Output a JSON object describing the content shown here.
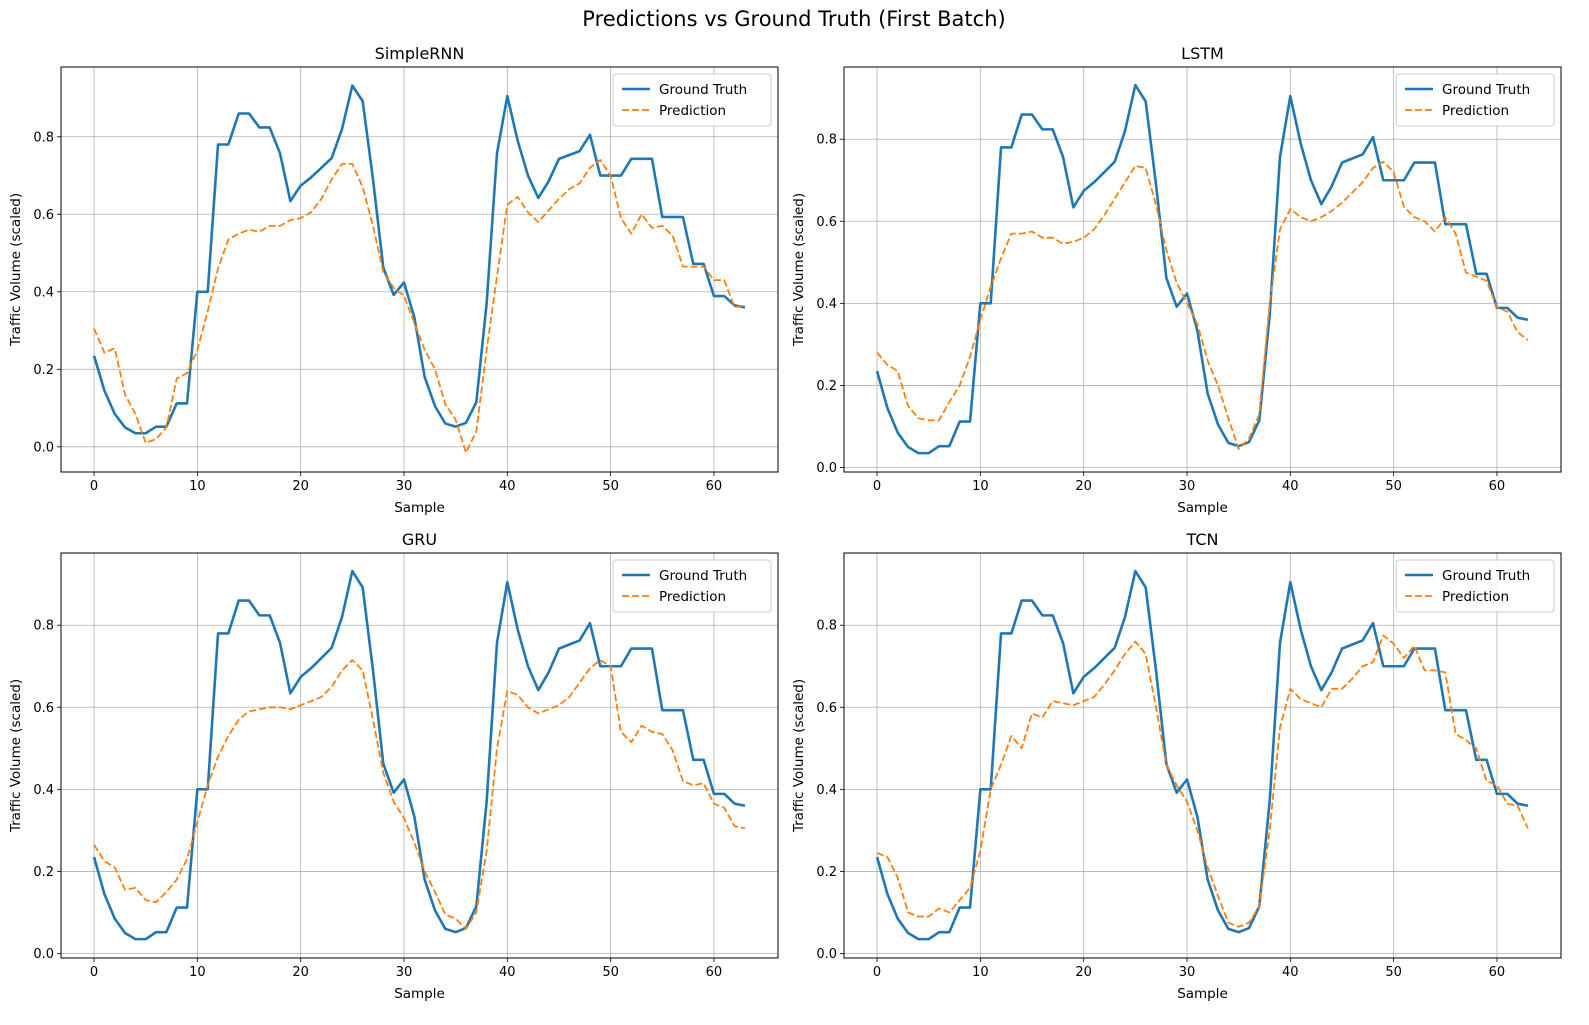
{
  "figure": {
    "suptitle": "Predictions vs Ground Truth (First Batch)"
  },
  "colors": {
    "ground_truth": "#1f77b4",
    "prediction": "#ff7f0e",
    "grid": "#b0b0b0"
  },
  "chart_data": [
    {
      "type": "line",
      "title": "SimpleRNN",
      "xlabel": "Sample",
      "ylabel": "Traffic Volume (scaled)",
      "xlim": [
        -3.2,
        66.2
      ],
      "ylim": [
        -0.065,
        0.98
      ],
      "xticks": [
        0,
        10,
        20,
        30,
        40,
        50,
        60
      ],
      "yticks": [
        0.0,
        0.2,
        0.4,
        0.6,
        0.8
      ],
      "grid": true,
      "legend": "top-right",
      "series": [
        {
          "name": "Ground Truth",
          "style": "solid",
          "values": [
            0.235,
            0.145,
            0.085,
            0.05,
            0.035,
            0.035,
            0.052,
            0.052,
            0.112,
            0.112,
            0.4,
            0.4,
            0.78,
            0.78,
            0.86,
            0.86,
            0.824,
            0.824,
            0.757,
            0.634,
            0.674,
            0.695,
            0.72,
            0.745,
            0.82,
            0.932,
            0.892,
            0.69,
            0.462,
            0.392,
            0.424,
            0.334,
            0.18,
            0.105,
            0.06,
            0.052,
            0.062,
            0.115,
            0.37,
            0.757,
            0.905,
            0.79,
            0.7,
            0.642,
            0.685,
            0.743,
            0.753,
            0.763,
            0.805,
            0.7,
            0.7,
            0.7,
            0.743,
            0.743,
            0.743,
            0.593,
            0.593,
            0.593,
            0.472,
            0.472,
            0.389,
            0.389,
            0.365,
            0.36
          ]
        },
        {
          "name": "Prediction",
          "style": "dashed",
          "values": [
            0.305,
            0.243,
            0.254,
            0.135,
            0.085,
            0.01,
            0.02,
            0.05,
            0.176,
            0.19,
            0.25,
            0.35,
            0.46,
            0.535,
            0.55,
            0.56,
            0.555,
            0.57,
            0.57,
            0.585,
            0.59,
            0.605,
            0.64,
            0.69,
            0.73,
            0.73,
            0.67,
            0.57,
            0.45,
            0.41,
            0.39,
            0.32,
            0.25,
            0.2,
            0.11,
            0.07,
            -0.015,
            0.04,
            0.25,
            0.44,
            0.625,
            0.645,
            0.605,
            0.58,
            0.61,
            0.64,
            0.665,
            0.68,
            0.72,
            0.74,
            0.7,
            0.59,
            0.55,
            0.6,
            0.565,
            0.57,
            0.545,
            0.465,
            0.465,
            0.465,
            0.43,
            0.43,
            0.36,
            0.365
          ]
        }
      ]
    },
    {
      "type": "line",
      "title": "LSTM",
      "xlabel": "Sample",
      "ylabel": "Traffic Volume (scaled)",
      "xlim": [
        -3.2,
        66.2
      ],
      "ylim": [
        -0.011,
        0.976
      ],
      "xticks": [
        0,
        10,
        20,
        30,
        40,
        50,
        60
      ],
      "yticks": [
        0.0,
        0.2,
        0.4,
        0.6,
        0.8
      ],
      "grid": true,
      "legend": "top-right",
      "series": [
        {
          "name": "Ground Truth",
          "style": "solid",
          "values": [
            0.235,
            0.145,
            0.085,
            0.05,
            0.035,
            0.035,
            0.052,
            0.052,
            0.112,
            0.112,
            0.4,
            0.4,
            0.78,
            0.78,
            0.86,
            0.86,
            0.824,
            0.824,
            0.757,
            0.634,
            0.674,
            0.695,
            0.72,
            0.745,
            0.82,
            0.932,
            0.892,
            0.69,
            0.462,
            0.392,
            0.424,
            0.334,
            0.18,
            0.105,
            0.06,
            0.052,
            0.062,
            0.115,
            0.37,
            0.757,
            0.905,
            0.79,
            0.7,
            0.642,
            0.685,
            0.743,
            0.753,
            0.763,
            0.805,
            0.7,
            0.7,
            0.7,
            0.743,
            0.743,
            0.743,
            0.593,
            0.593,
            0.593,
            0.472,
            0.472,
            0.389,
            0.389,
            0.365,
            0.36
          ]
        },
        {
          "name": "Prediction",
          "style": "dashed",
          "values": [
            0.28,
            0.25,
            0.235,
            0.15,
            0.12,
            0.115,
            0.115,
            0.16,
            0.2,
            0.27,
            0.36,
            0.44,
            0.51,
            0.57,
            0.57,
            0.575,
            0.56,
            0.56,
            0.545,
            0.55,
            0.56,
            0.58,
            0.615,
            0.655,
            0.695,
            0.735,
            0.73,
            0.64,
            0.53,
            0.45,
            0.4,
            0.35,
            0.26,
            0.2,
            0.12,
            0.045,
            0.07,
            0.13,
            0.4,
            0.58,
            0.63,
            0.61,
            0.6,
            0.61,
            0.625,
            0.645,
            0.67,
            0.695,
            0.73,
            0.745,
            0.72,
            0.635,
            0.61,
            0.6,
            0.575,
            0.61,
            0.57,
            0.475,
            0.465,
            0.455,
            0.39,
            0.38,
            0.33,
            0.31
          ]
        }
      ]
    },
    {
      "type": "line",
      "title": "GRU",
      "xlabel": "Sample",
      "ylabel": "Traffic Volume (scaled)",
      "xlim": [
        -3.2,
        66.2
      ],
      "ylim": [
        -0.011,
        0.976
      ],
      "xticks": [
        0,
        10,
        20,
        30,
        40,
        50,
        60
      ],
      "yticks": [
        0.0,
        0.2,
        0.4,
        0.6,
        0.8
      ],
      "grid": true,
      "legend": "top-right",
      "series": [
        {
          "name": "Ground Truth",
          "style": "solid",
          "values": [
            0.235,
            0.145,
            0.085,
            0.05,
            0.035,
            0.035,
            0.052,
            0.052,
            0.112,
            0.112,
            0.4,
            0.4,
            0.78,
            0.78,
            0.86,
            0.86,
            0.824,
            0.824,
            0.757,
            0.634,
            0.674,
            0.695,
            0.72,
            0.745,
            0.82,
            0.932,
            0.892,
            0.69,
            0.462,
            0.392,
            0.424,
            0.334,
            0.18,
            0.105,
            0.06,
            0.052,
            0.062,
            0.115,
            0.37,
            0.757,
            0.905,
            0.79,
            0.7,
            0.642,
            0.685,
            0.743,
            0.753,
            0.763,
            0.805,
            0.7,
            0.7,
            0.7,
            0.743,
            0.743,
            0.743,
            0.593,
            0.593,
            0.593,
            0.472,
            0.472,
            0.389,
            0.389,
            0.365,
            0.36
          ]
        },
        {
          "name": "Prediction",
          "style": "dashed",
          "values": [
            0.265,
            0.225,
            0.21,
            0.155,
            0.16,
            0.13,
            0.125,
            0.15,
            0.18,
            0.23,
            0.32,
            0.41,
            0.48,
            0.53,
            0.57,
            0.59,
            0.595,
            0.6,
            0.6,
            0.595,
            0.605,
            0.615,
            0.625,
            0.65,
            0.69,
            0.715,
            0.69,
            0.57,
            0.44,
            0.37,
            0.33,
            0.27,
            0.2,
            0.15,
            0.095,
            0.085,
            0.06,
            0.1,
            0.25,
            0.5,
            0.64,
            0.63,
            0.6,
            0.585,
            0.595,
            0.605,
            0.625,
            0.66,
            0.695,
            0.715,
            0.7,
            0.54,
            0.515,
            0.555,
            0.54,
            0.535,
            0.495,
            0.42,
            0.41,
            0.415,
            0.365,
            0.355,
            0.31,
            0.305
          ]
        }
      ]
    },
    {
      "type": "line",
      "title": "TCN",
      "xlabel": "Sample",
      "ylabel": "Traffic Volume (scaled)",
      "xlim": [
        -3.2,
        66.2
      ],
      "ylim": [
        -0.011,
        0.976
      ],
      "xticks": [
        0,
        10,
        20,
        30,
        40,
        50,
        60
      ],
      "yticks": [
        0.0,
        0.2,
        0.4,
        0.6,
        0.8
      ],
      "grid": true,
      "legend": "top-right",
      "series": [
        {
          "name": "Ground Truth",
          "style": "solid",
          "values": [
            0.235,
            0.145,
            0.085,
            0.05,
            0.035,
            0.035,
            0.052,
            0.052,
            0.112,
            0.112,
            0.4,
            0.4,
            0.78,
            0.78,
            0.86,
            0.86,
            0.824,
            0.824,
            0.757,
            0.634,
            0.674,
            0.695,
            0.72,
            0.745,
            0.82,
            0.932,
            0.892,
            0.69,
            0.462,
            0.392,
            0.424,
            0.334,
            0.18,
            0.105,
            0.06,
            0.052,
            0.062,
            0.115,
            0.37,
            0.757,
            0.905,
            0.79,
            0.7,
            0.642,
            0.685,
            0.743,
            0.753,
            0.763,
            0.805,
            0.7,
            0.7,
            0.7,
            0.743,
            0.743,
            0.743,
            0.593,
            0.593,
            0.593,
            0.472,
            0.472,
            0.389,
            0.389,
            0.365,
            0.36
          ]
        },
        {
          "name": "Prediction",
          "style": "dashed",
          "values": [
            0.245,
            0.235,
            0.185,
            0.1,
            0.09,
            0.09,
            0.11,
            0.1,
            0.13,
            0.16,
            0.25,
            0.4,
            0.46,
            0.53,
            0.5,
            0.585,
            0.575,
            0.615,
            0.61,
            0.605,
            0.615,
            0.625,
            0.655,
            0.69,
            0.73,
            0.76,
            0.73,
            0.6,
            0.46,
            0.41,
            0.37,
            0.3,
            0.21,
            0.14,
            0.075,
            0.065,
            0.075,
            0.115,
            0.3,
            0.55,
            0.645,
            0.62,
            0.61,
            0.6,
            0.645,
            0.645,
            0.67,
            0.7,
            0.71,
            0.775,
            0.755,
            0.72,
            0.75,
            0.69,
            0.69,
            0.685,
            0.535,
            0.52,
            0.5,
            0.42,
            0.41,
            0.365,
            0.36,
            0.305
          ]
        }
      ]
    }
  ]
}
